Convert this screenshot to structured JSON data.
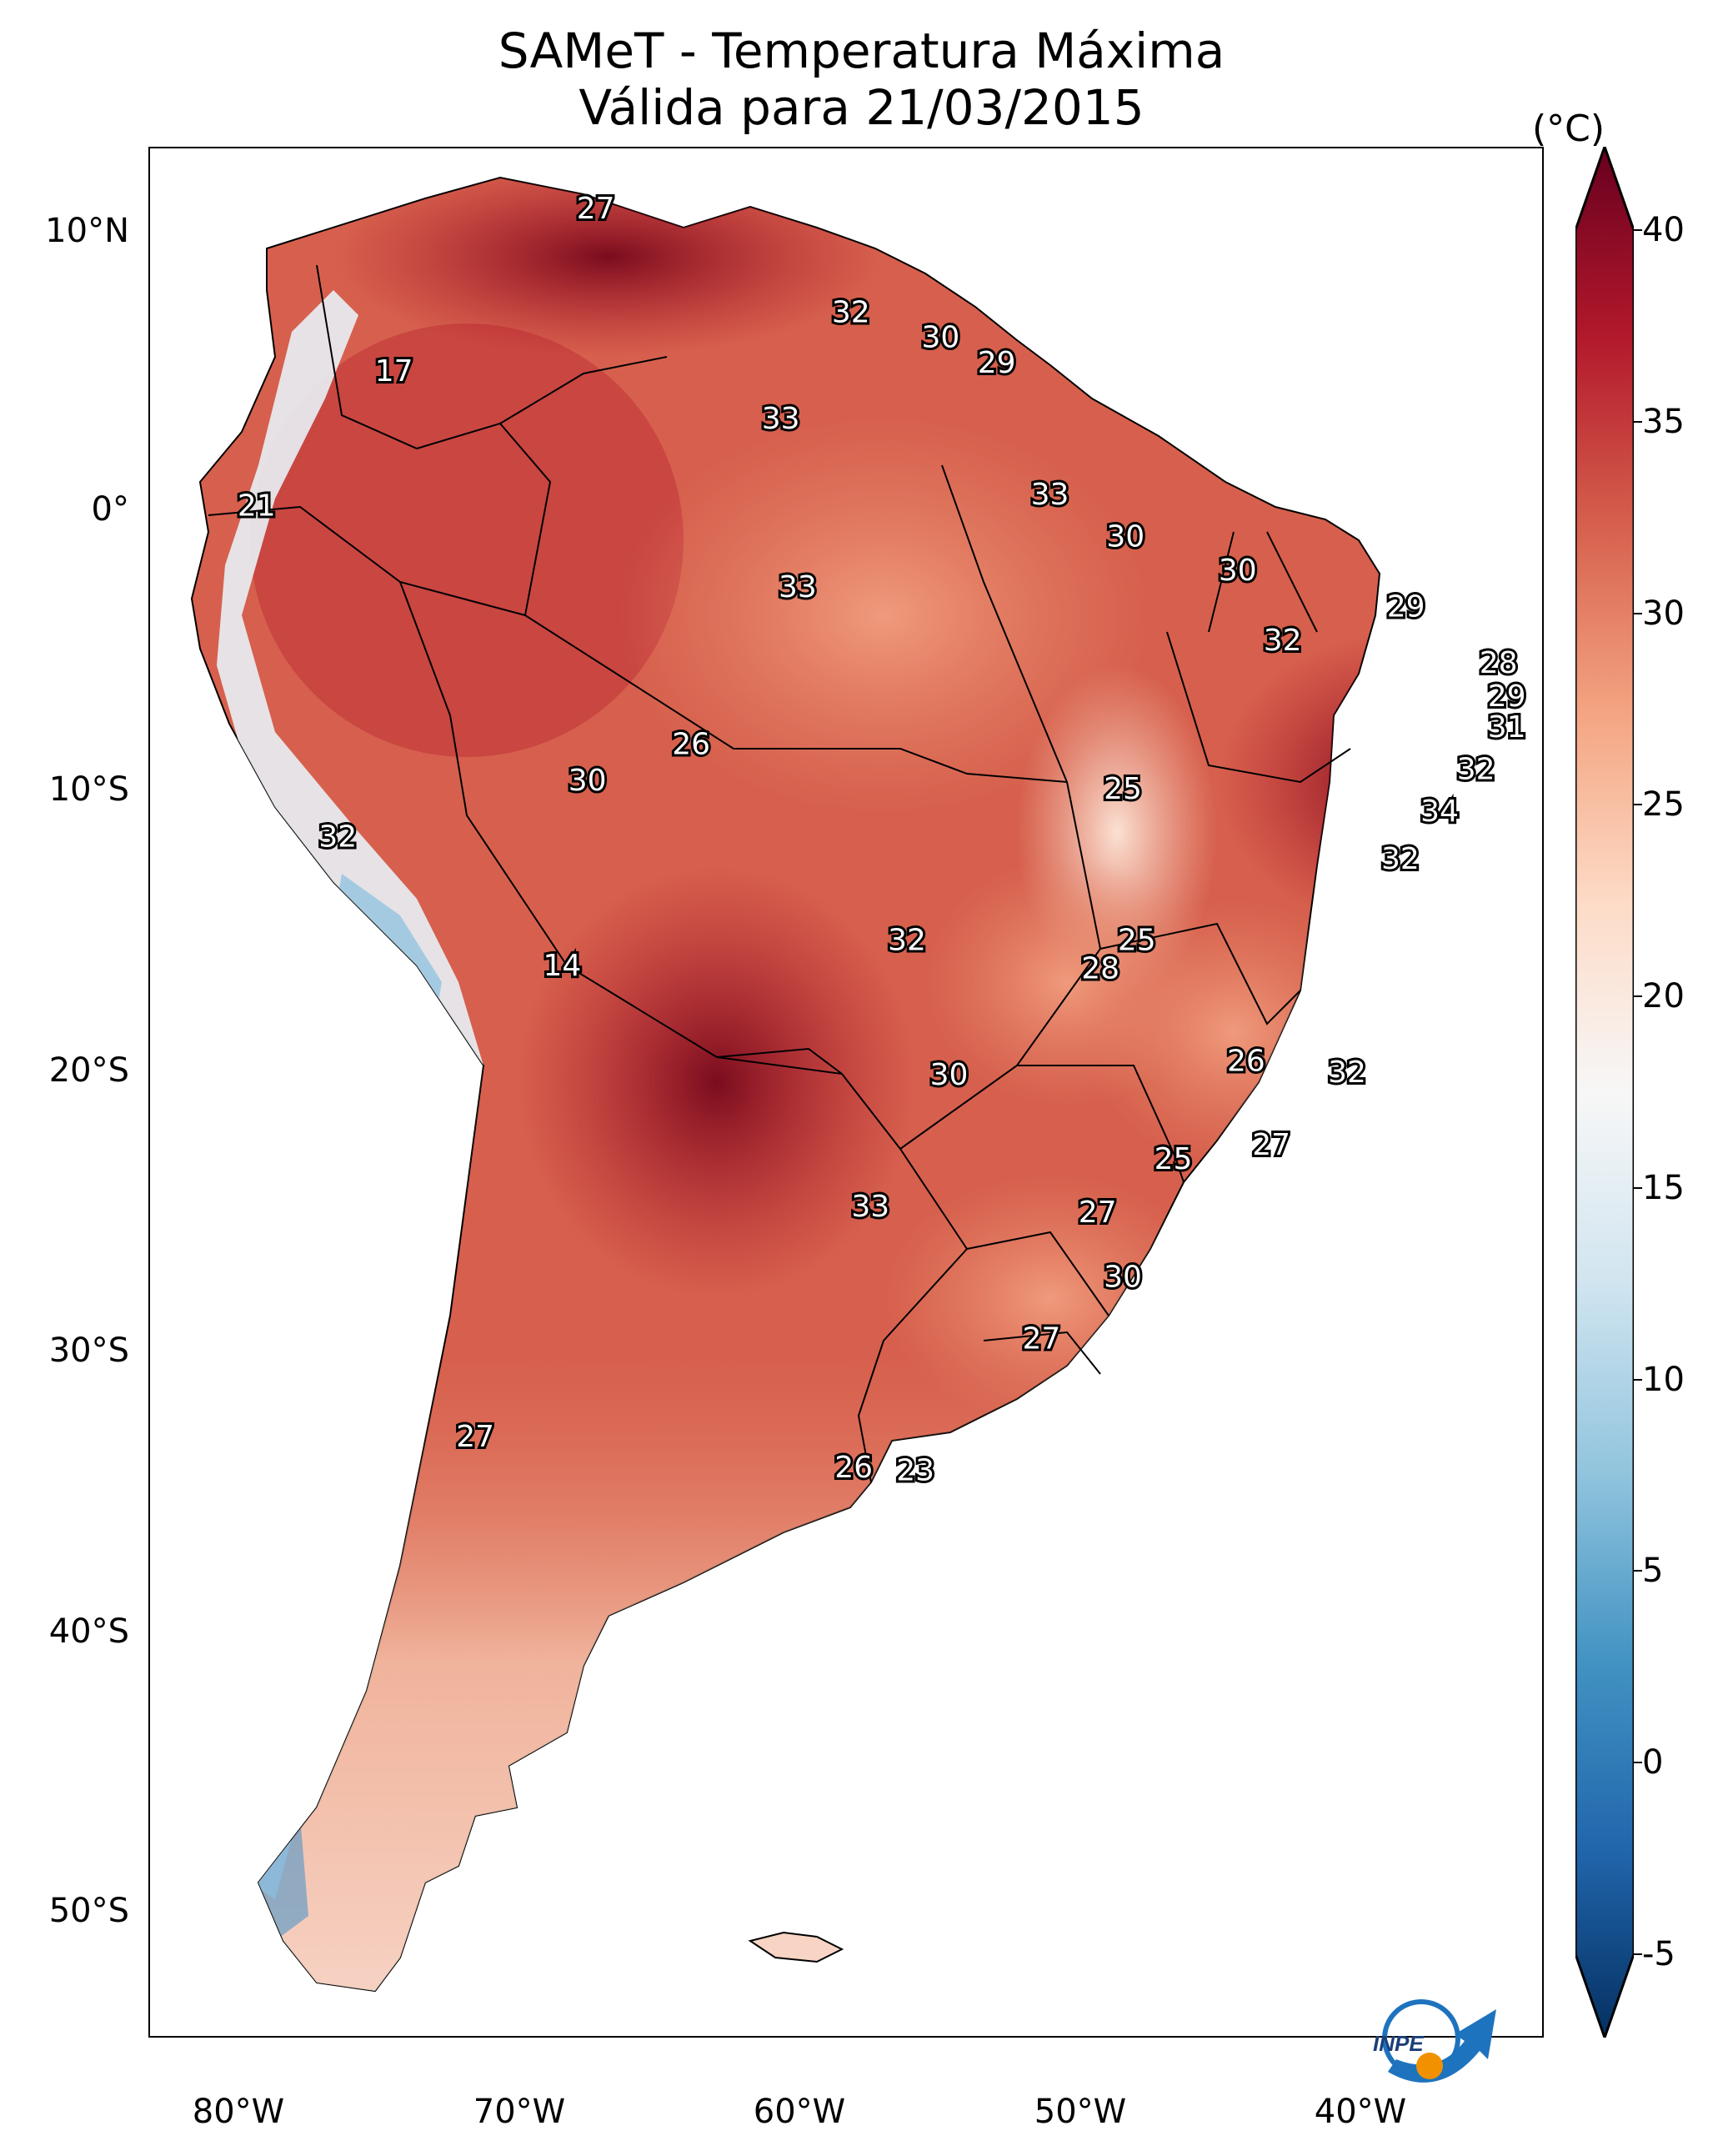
{
  "title": {
    "line1": "SAMeT - Temperatura Máxima",
    "line2": "Válida para 21/03/2015"
  },
  "axes": {
    "lat_labels": [
      "10°N",
      "0°",
      "10°S",
      "20°S",
      "30°S",
      "40°S",
      "50°S"
    ],
    "lon_labels": [
      "80°W",
      "70°W",
      "60°W",
      "50°W",
      "40°W"
    ]
  },
  "colorbar": {
    "unit": "(°C)",
    "ticks": [
      "40",
      "35",
      "30",
      "25",
      "20",
      "15",
      "10",
      "5",
      "0",
      "-5"
    ],
    "range": [
      -5,
      40
    ],
    "colors": [
      "#053061",
      "#2166ac",
      "#4393c3",
      "#92c5de",
      "#d1e5f0",
      "#f7f7f7",
      "#fddbc7",
      "#f4a582",
      "#d6604d",
      "#b2182b",
      "#67001f"
    ]
  },
  "map_values": [
    {
      "text": "27",
      "lon": -67,
      "lat": 10.3
    },
    {
      "text": "32",
      "lon": -57.9,
      "lat": 6.6
    },
    {
      "text": "30",
      "lon": -54.7,
      "lat": 5.7
    },
    {
      "text": "29",
      "lon": -52.7,
      "lat": 4.8
    },
    {
      "text": "17",
      "lon": -74.2,
      "lat": 4.5
    },
    {
      "text": "33",
      "lon": -60.4,
      "lat": 2.8
    },
    {
      "text": "33",
      "lon": -50.8,
      "lat": 0.1
    },
    {
      "text": "21",
      "lon": -79.1,
      "lat": -0.3
    },
    {
      "text": "30",
      "lon": -48.1,
      "lat": -1.4
    },
    {
      "text": "30",
      "lon": -44.1,
      "lat": -2.6
    },
    {
      "text": "33",
      "lon": -59.8,
      "lat": -3.2
    },
    {
      "text": "29",
      "lon": -38.1,
      "lat": -3.9
    },
    {
      "text": "32",
      "lon": -42.5,
      "lat": -5.1
    },
    {
      "text": "28",
      "lon": -34.8,
      "lat": -5.9
    },
    {
      "text": "29",
      "lon": -34.5,
      "lat": -7.1
    },
    {
      "text": "31",
      "lon": -34.5,
      "lat": -8.2
    },
    {
      "text": "26",
      "lon": -63.6,
      "lat": -8.8
    },
    {
      "text": "32",
      "lon": -35.6,
      "lat": -9.7
    },
    {
      "text": "30",
      "lon": -67.3,
      "lat": -10.1
    },
    {
      "text": "25",
      "lon": -48.2,
      "lat": -10.4
    },
    {
      "text": "34",
      "lon": -36.9,
      "lat": -11.2
    },
    {
      "text": "32",
      "lon": -76.2,
      "lat": -12.1
    },
    {
      "text": "32",
      "lon": -38.3,
      "lat": -12.9
    },
    {
      "text": "32",
      "lon": -55.9,
      "lat": -15.8
    },
    {
      "text": "25",
      "lon": -47.7,
      "lat": -15.8
    },
    {
      "text": "28",
      "lon": -49,
      "lat": -16.8
    },
    {
      "text": "14",
      "lon": -68.2,
      "lat": -16.7
    },
    {
      "text": "26",
      "lon": -43.8,
      "lat": -20.1
    },
    {
      "text": "30",
      "lon": -54.4,
      "lat": -20.6
    },
    {
      "text": "32",
      "lon": -40.2,
      "lat": -20.5
    },
    {
      "text": "27",
      "lon": -42.9,
      "lat": -23.1
    },
    {
      "text": "25",
      "lon": -46.4,
      "lat": -23.6
    },
    {
      "text": "33",
      "lon": -57.2,
      "lat": -25.3
    },
    {
      "text": "27",
      "lon": -49.1,
      "lat": -25.5
    },
    {
      "text": "30",
      "lon": -48.2,
      "lat": -27.8
    },
    {
      "text": "27",
      "lon": -51.1,
      "lat": -30
    },
    {
      "text": "27",
      "lon": -71.3,
      "lat": -33.5
    },
    {
      "text": "26",
      "lon": -57.8,
      "lat": -34.6
    },
    {
      "text": "23",
      "lon": -55.6,
      "lat": -34.7
    }
  ],
  "logo": {
    "text": "INPE"
  }
}
